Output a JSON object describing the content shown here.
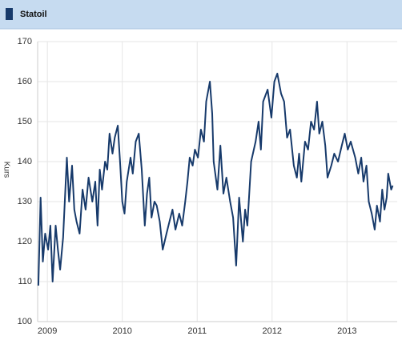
{
  "chart_data": {
    "type": "line",
    "y_label": "Kurs",
    "x": [
      2008.88,
      2008.91,
      2008.94,
      2008.97,
      2009.01,
      2009.04,
      2009.07,
      2009.11,
      2009.14,
      2009.17,
      2009.21,
      2009.26,
      2009.29,
      2009.33,
      2009.36,
      2009.39,
      2009.43,
      2009.47,
      2009.51,
      2009.55,
      2009.6,
      2009.64,
      2009.67,
      2009.7,
      2009.73,
      2009.77,
      2009.8,
      2009.83,
      2009.87,
      2009.9,
      2009.94,
      2009.97,
      2010.0,
      2010.03,
      2010.06,
      2010.11,
      2010.14,
      2010.18,
      2010.22,
      2010.26,
      2010.3,
      2010.33,
      2010.36,
      2010.39,
      2010.43,
      2010.46,
      2010.5,
      2010.54,
      2010.59,
      2010.63,
      2010.67,
      2010.71,
      2010.76,
      2010.8,
      2010.84,
      2010.87,
      2010.9,
      2010.94,
      2010.97,
      2011.01,
      2011.05,
      2011.09,
      2011.12,
      2011.17,
      2011.2,
      2011.22,
      2011.27,
      2011.31,
      2011.35,
      2011.39,
      2011.44,
      2011.48,
      2011.52,
      2011.56,
      2011.61,
      2011.64,
      2011.67,
      2011.72,
      2011.78,
      2011.82,
      2011.85,
      2011.88,
      2011.94,
      2011.99,
      2012.03,
      2012.07,
      2012.12,
      2012.16,
      2012.2,
      2012.24,
      2012.29,
      2012.33,
      2012.36,
      2012.39,
      2012.44,
      2012.48,
      2012.52,
      2012.56,
      2012.6,
      2012.63,
      2012.67,
      2012.71,
      2012.74,
      2012.79,
      2012.83,
      2012.88,
      2012.93,
      2012.97,
      2013.01,
      2013.05,
      2013.11,
      2013.15,
      2013.19,
      2013.22,
      2013.26,
      2013.29,
      2013.33,
      2013.37,
      2013.4,
      2013.44,
      2013.47,
      2013.5,
      2013.53,
      2013.55,
      2013.59,
      2013.61
    ],
    "series": [
      {
        "name": "Statoil",
        "color": "#173a6b",
        "values": [
          109,
          131,
          115,
          122,
          118,
          124,
          110,
          124,
          118,
          113,
          121,
          141,
          130,
          139,
          128,
          125,
          122,
          133,
          128,
          136,
          130,
          135,
          124,
          138,
          133,
          140,
          138,
          147,
          142,
          146,
          149,
          140,
          130,
          127,
          135,
          141,
          137,
          145,
          147,
          138,
          124,
          132,
          136,
          126,
          130,
          129,
          125,
          118,
          122,
          125,
          128,
          123,
          127,
          124,
          130,
          135,
          141,
          139,
          143,
          141,
          148,
          145,
          155,
          160,
          152,
          140,
          133,
          144,
          132,
          136,
          130,
          126,
          114,
          131,
          120,
          128,
          124,
          140,
          145,
          150,
          143,
          155,
          158,
          151,
          160,
          162,
          157,
          155,
          146,
          148,
          139,
          136,
          142,
          135,
          145,
          143,
          150,
          148,
          155,
          147,
          150,
          144,
          136,
          139,
          142,
          140,
          144,
          147,
          143,
          145,
          141,
          137,
          141,
          135,
          139,
          130,
          127,
          123,
          129,
          125,
          133,
          128,
          131,
          137,
          133,
          134
        ]
      }
    ],
    "xlim": [
      2008.87,
      2013.67
    ],
    "xticks": [
      2009,
      2010,
      2011,
      2012,
      2013
    ],
    "ylim": [
      100,
      170
    ],
    "yticks": [
      100,
      110,
      120,
      130,
      140,
      150,
      160,
      170
    ],
    "grid": true
  }
}
